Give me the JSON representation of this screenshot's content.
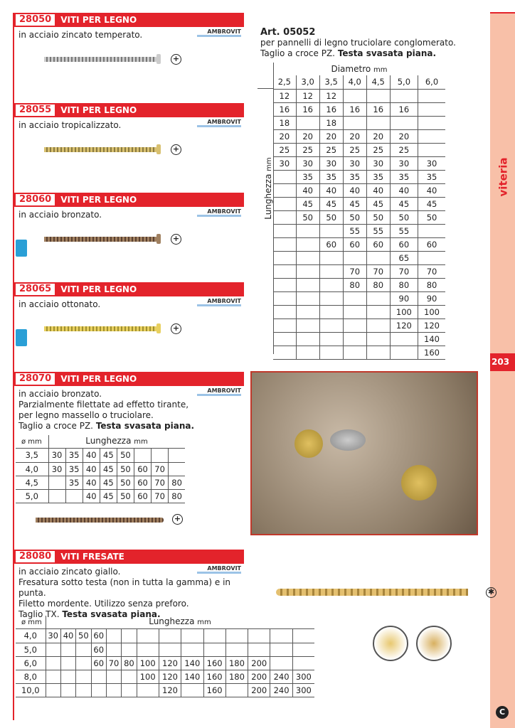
{
  "side": {
    "category": "viteria",
    "page": "203",
    "accent": "#e3232b",
    "tab_bg": "#f8c0a8"
  },
  "sections": [
    {
      "code": "28050",
      "title": "VITI PER LEGNO",
      "desc": "in acciaio zincato temperato.",
      "logo": "AMBROVIT"
    },
    {
      "code": "28055",
      "title": "VITI PER LEGNO",
      "desc": "in acciaio tropicalizzato.",
      "logo": "AMBROVIT"
    },
    {
      "code": "28060",
      "title": "VITI PER LEGNO",
      "desc": "in acciaio bronzato.",
      "logo": "AMBROVIT"
    },
    {
      "code": "28065",
      "title": "VITI PER LEGNO",
      "desc": "in acciaio ottonato.",
      "logo": "AMBROVIT"
    },
    {
      "code": "28070",
      "title": "VITI PER LEGNO",
      "desc": "in acciaio bronzato.\nParzialmente filettate ad effetto tirante,\nper legno massello o truciolare.\nTaglio a croce PZ.",
      "bold": "Testa svasata piana.",
      "logo": "AMBROVIT"
    },
    {
      "code": "28080",
      "title": "VITI FRESATE",
      "desc": "in acciaio zincato giallo.\nFresatura sotto testa (non in tutta la gamma) e in punta.\nFiletto mordente. Utilizzo senza preforo.\nTaglio TX.",
      "bold": "Testa svasata piana.",
      "logo": "AMBROVIT"
    }
  ],
  "art": {
    "title": "Art. 05052",
    "line1": "per pannelli di legno truciolare conglomerato.",
    "line2": "Taglio a croce PZ.",
    "bold": "Testa svasata piana.",
    "diam_label": "Diametro",
    "len_label": "Lunghezza",
    "unit": "mm",
    "diameters": [
      "2,5",
      "3,0",
      "3,5",
      "4,0",
      "4,5",
      "5,0",
      "6,0"
    ],
    "rows": [
      [
        "12",
        "12",
        "12",
        "",
        "",
        "",
        ""
      ],
      [
        "16",
        "16",
        "16",
        "16",
        "16",
        "16",
        ""
      ],
      [
        "18",
        "",
        "18",
        "",
        "",
        "",
        ""
      ],
      [
        "20",
        "20",
        "20",
        "20",
        "20",
        "20",
        ""
      ],
      [
        "25",
        "25",
        "25",
        "25",
        "25",
        "25",
        ""
      ],
      [
        "30",
        "30",
        "30",
        "30",
        "30",
        "30",
        "30"
      ],
      [
        "",
        "35",
        "35",
        "35",
        "35",
        "35",
        "35"
      ],
      [
        "",
        "40",
        "40",
        "40",
        "40",
        "40",
        "40"
      ],
      [
        "",
        "45",
        "45",
        "45",
        "45",
        "45",
        "45"
      ],
      [
        "",
        "50",
        "50",
        "50",
        "50",
        "50",
        "50"
      ],
      [
        "",
        "",
        "",
        "55",
        "55",
        "55",
        ""
      ],
      [
        "",
        "",
        "60",
        "60",
        "60",
        "60",
        "60"
      ],
      [
        "",
        "",
        "",
        "",
        "",
        "65",
        ""
      ],
      [
        "",
        "",
        "",
        "70",
        "70",
        "70",
        "70"
      ],
      [
        "",
        "",
        "",
        "80",
        "80",
        "80",
        "80"
      ],
      [
        "",
        "",
        "",
        "",
        "",
        "90",
        "90"
      ],
      [
        "",
        "",
        "",
        "",
        "",
        "100",
        "100"
      ],
      [
        "",
        "",
        "",
        "",
        "",
        "120",
        "120"
      ],
      [
        "",
        "",
        "",
        "",
        "",
        "",
        "140"
      ],
      [
        "",
        "",
        "",
        "",
        "",
        "",
        "160"
      ]
    ]
  },
  "t70": {
    "d_label": "ø mm",
    "len_label": "Lunghezza",
    "unit": "mm",
    "rows": [
      [
        "3,5",
        "30",
        "35",
        "40",
        "45",
        "50",
        "",
        "",
        ""
      ],
      [
        "4,0",
        "30",
        "35",
        "40",
        "45",
        "50",
        "60",
        "70",
        ""
      ],
      [
        "4,5",
        "",
        "35",
        "40",
        "45",
        "50",
        "60",
        "70",
        "80"
      ],
      [
        "5,0",
        "",
        "",
        "40",
        "45",
        "50",
        "60",
        "70",
        "80"
      ]
    ]
  },
  "t80": {
    "d_label": "ø mm",
    "len_label": "Lunghezza",
    "unit": "mm",
    "rows": [
      [
        "4,0",
        "30",
        "40",
        "50",
        "60",
        "",
        "",
        "",
        "",
        "",
        "",
        "",
        "",
        "",
        ""
      ],
      [
        "5,0",
        "",
        "",
        "",
        "60",
        "",
        "",
        "",
        "",
        "",
        "",
        "",
        "",
        "",
        ""
      ],
      [
        "6,0",
        "",
        "",
        "",
        "60",
        "70",
        "80",
        "100",
        "120",
        "140",
        "160",
        "180",
        "200",
        "",
        ""
      ],
      [
        "8,0",
        "",
        "",
        "",
        "",
        "",
        "",
        "100",
        "120",
        "140",
        "160",
        "180",
        "200",
        "240",
        "300"
      ],
      [
        "10,0",
        "",
        "",
        "",
        "",
        "",
        "",
        "",
        "120",
        "",
        "160",
        "",
        "200",
        "240",
        "300"
      ]
    ]
  }
}
